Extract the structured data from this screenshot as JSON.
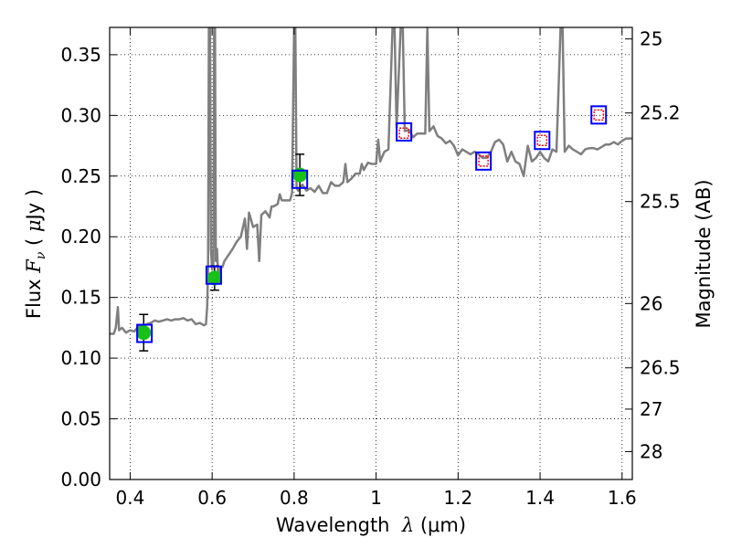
{
  "chart_data": {
    "type": "line",
    "xlabel": "Wavelength λ (μm)",
    "xlabel_parts": {
      "prefix": "Wavelength  ",
      "symbol": "λ",
      "unit": " (μm)"
    },
    "ylabel": "Flux F_ν (μJy)",
    "ylabel_parts": {
      "prefix": "Flux  ",
      "symbol": "F",
      "sub": "ν",
      "mid": "  ( ",
      "mu": "μ",
      "unit": "Jy )"
    },
    "y2label": "Magnitude (AB)",
    "xlim": [
      0.35,
      1.625
    ],
    "ylim": [
      0.0,
      0.3725
    ],
    "grid": true,
    "grid_style": "dotted",
    "xticks": [
      0.4,
      0.6,
      0.8,
      1.0,
      1.2,
      1.4,
      1.6
    ],
    "xtick_labels": [
      "0.4",
      "0.6",
      "0.8",
      "1",
      "1.2",
      "1.4",
      "1.6"
    ],
    "yticks": [
      0.0,
      0.05,
      0.1,
      0.15,
      0.2,
      0.25,
      0.3,
      0.35
    ],
    "ytick_labels": [
      "0.00",
      "0.05",
      "0.10",
      "0.15",
      "0.20",
      "0.25",
      "0.30",
      "0.35"
    ],
    "right_axis_ticks": [
      {
        "label": "25",
        "flux": 0.363
      },
      {
        "label": "25.2",
        "flux": 0.302
      },
      {
        "label": "25.5",
        "flux": 0.229
      },
      {
        "label": "26",
        "flux": 0.145
      },
      {
        "label": "26.5",
        "flux": 0.092
      },
      {
        "label": "27",
        "flux": 0.058
      },
      {
        "label": "28",
        "flux": 0.023
      }
    ],
    "series": [
      {
        "kind": "model_spectrum",
        "color": "#7f7f7f",
        "points": [
          [
            0.35,
            0.12
          ],
          [
            0.36,
            0.12
          ],
          [
            0.365,
            0.125
          ],
          [
            0.37,
            0.142
          ],
          [
            0.373,
            0.123
          ],
          [
            0.38,
            0.125
          ],
          [
            0.39,
            0.121
          ],
          [
            0.4,
            0.123
          ],
          [
            0.41,
            0.122
          ],
          [
            0.42,
            0.126
          ],
          [
            0.43,
            0.126
          ],
          [
            0.44,
            0.128
          ],
          [
            0.45,
            0.129
          ],
          [
            0.46,
            0.131
          ],
          [
            0.47,
            0.13
          ],
          [
            0.48,
            0.131
          ],
          [
            0.49,
            0.132
          ],
          [
            0.5,
            0.131
          ],
          [
            0.51,
            0.132
          ],
          [
            0.52,
            0.132
          ],
          [
            0.53,
            0.133
          ],
          [
            0.54,
            0.131
          ],
          [
            0.55,
            0.132
          ],
          [
            0.56,
            0.128
          ],
          [
            0.57,
            0.129
          ],
          [
            0.58,
            0.127
          ],
          [
            0.585,
            0.128
          ],
          [
            0.588,
            0.143
          ],
          [
            0.59,
            0.172
          ],
          [
            0.592,
            0.3725
          ],
          [
            0.595,
            0.3725
          ],
          [
            0.597,
            0.19
          ],
          [
            0.6,
            0.173
          ],
          [
            0.603,
            0.178
          ],
          [
            0.605,
            0.3725
          ],
          [
            0.607,
            0.3725
          ],
          [
            0.609,
            0.18
          ],
          [
            0.612,
            0.19
          ],
          [
            0.615,
            0.165
          ],
          [
            0.62,
            0.175
          ],
          [
            0.625,
            0.175
          ],
          [
            0.63,
            0.18
          ],
          [
            0.64,
            0.185
          ],
          [
            0.65,
            0.19
          ],
          [
            0.66,
            0.196
          ],
          [
            0.67,
            0.2
          ],
          [
            0.68,
            0.215
          ],
          [
            0.685,
            0.19
          ],
          [
            0.69,
            0.22
          ],
          [
            0.7,
            0.208
          ],
          [
            0.71,
            0.21
          ],
          [
            0.715,
            0.18
          ],
          [
            0.72,
            0.218
          ],
          [
            0.73,
            0.221
          ],
          [
            0.74,
            0.216
          ],
          [
            0.745,
            0.225
          ],
          [
            0.75,
            0.225
          ],
          [
            0.76,
            0.227
          ],
          [
            0.765,
            0.235
          ],
          [
            0.77,
            0.23
          ],
          [
            0.78,
            0.23
          ],
          [
            0.79,
            0.23
          ],
          [
            0.795,
            0.236
          ],
          [
            0.8,
            0.3725
          ],
          [
            0.803,
            0.3725
          ],
          [
            0.806,
            0.24
          ],
          [
            0.81,
            0.238
          ],
          [
            0.82,
            0.243
          ],
          [
            0.83,
            0.238
          ],
          [
            0.84,
            0.24
          ],
          [
            0.85,
            0.237
          ],
          [
            0.86,
            0.242
          ],
          [
            0.87,
            0.236
          ],
          [
            0.88,
            0.236
          ],
          [
            0.89,
            0.245
          ],
          [
            0.9,
            0.242
          ],
          [
            0.91,
            0.242
          ],
          [
            0.92,
            0.245
          ],
          [
            0.925,
            0.26
          ],
          [
            0.93,
            0.245
          ],
          [
            0.94,
            0.248
          ],
          [
            0.95,
            0.252
          ],
          [
            0.96,
            0.252
          ],
          [
            0.965,
            0.26
          ],
          [
            0.97,
            0.255
          ],
          [
            0.98,
            0.261
          ],
          [
            0.99,
            0.26
          ],
          [
            1.0,
            0.26
          ],
          [
            1.005,
            0.28
          ],
          [
            1.01,
            0.262
          ],
          [
            1.02,
            0.27
          ],
          [
            1.03,
            0.272
          ],
          [
            1.04,
            0.3725
          ],
          [
            1.045,
            0.3725
          ],
          [
            1.05,
            0.29
          ],
          [
            1.06,
            0.3725
          ],
          [
            1.065,
            0.3725
          ],
          [
            1.07,
            0.287
          ],
          [
            1.08,
            0.288
          ],
          [
            1.09,
            0.282
          ],
          [
            1.1,
            0.285
          ],
          [
            1.11,
            0.285
          ],
          [
            1.12,
            0.285
          ],
          [
            1.125,
            0.3725
          ],
          [
            1.13,
            0.287
          ],
          [
            1.14,
            0.291
          ],
          [
            1.15,
            0.283
          ],
          [
            1.16,
            0.281
          ],
          [
            1.17,
            0.277
          ],
          [
            1.18,
            0.279
          ],
          [
            1.19,
            0.275
          ],
          [
            1.2,
            0.267
          ],
          [
            1.21,
            0.272
          ],
          [
            1.22,
            0.27
          ],
          [
            1.23,
            0.268
          ],
          [
            1.24,
            0.27
          ],
          [
            1.25,
            0.268
          ],
          [
            1.26,
            0.265
          ],
          [
            1.27,
            0.265
          ],
          [
            1.28,
            0.27
          ],
          [
            1.29,
            0.278
          ],
          [
            1.3,
            0.28
          ],
          [
            1.31,
            0.276
          ],
          [
            1.32,
            0.262
          ],
          [
            1.33,
            0.27
          ],
          [
            1.34,
            0.262
          ],
          [
            1.35,
            0.26
          ],
          [
            1.36,
            0.25
          ],
          [
            1.37,
            0.275
          ],
          [
            1.38,
            0.262
          ],
          [
            1.39,
            0.265
          ],
          [
            1.4,
            0.27
          ],
          [
            1.41,
            0.265
          ],
          [
            1.42,
            0.262
          ],
          [
            1.43,
            0.272
          ],
          [
            1.44,
            0.27
          ],
          [
            1.45,
            0.3725
          ],
          [
            1.455,
            0.3725
          ],
          [
            1.46,
            0.27
          ],
          [
            1.47,
            0.275
          ],
          [
            1.48,
            0.272
          ],
          [
            1.49,
            0.27
          ],
          [
            1.5,
            0.268
          ],
          [
            1.51,
            0.272
          ],
          [
            1.52,
            0.273
          ],
          [
            1.53,
            0.273
          ],
          [
            1.54,
            0.272
          ],
          [
            1.55,
            0.274
          ],
          [
            1.56,
            0.276
          ],
          [
            1.57,
            0.276
          ],
          [
            1.58,
            0.278
          ],
          [
            1.59,
            0.276
          ],
          [
            1.6,
            0.279
          ],
          [
            1.61,
            0.281
          ],
          [
            1.625,
            0.281
          ]
        ]
      },
      {
        "kind": "observed_photometry",
        "marker": "circle",
        "color": "#18c018",
        "errorbar_color": "#000000",
        "points": [
          {
            "x": 0.433,
            "y": 0.121,
            "yerr": 0.015
          },
          {
            "x": 0.606,
            "y": 0.166,
            "yerr": 0.01
          },
          {
            "x": 0.814,
            "y": 0.251,
            "yerr": 0.017
          }
        ]
      },
      {
        "kind": "model_photometry",
        "marker": "square",
        "color": "#0000ff",
        "points": [
          {
            "x": 0.435,
            "y": 0.12
          },
          {
            "x": 0.604,
            "y": 0.168
          },
          {
            "x": 0.814,
            "y": 0.247
          },
          {
            "x": 1.068,
            "y": 0.286
          },
          {
            "x": 1.262,
            "y": 0.262
          },
          {
            "x": 1.405,
            "y": 0.279
          },
          {
            "x": 1.543,
            "y": 0.3
          }
        ]
      },
      {
        "kind": "upper_limits",
        "marker": "square",
        "color": "#ff0000",
        "points": [
          {
            "x": 1.068,
            "y": 0.285
          },
          {
            "x": 1.262,
            "y": 0.262
          },
          {
            "x": 1.405,
            "y": 0.279
          },
          {
            "x": 1.543,
            "y": 0.3
          }
        ]
      }
    ]
  }
}
